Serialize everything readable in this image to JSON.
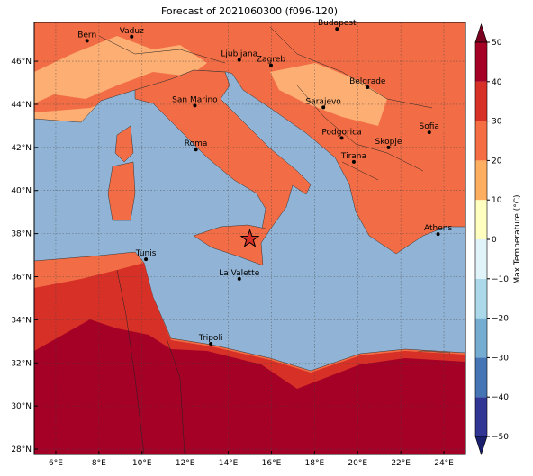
{
  "title": "Forecast of 2021060300 (f096-120)",
  "map": {
    "xlim": [
      5,
      25
    ],
    "ylim": [
      27.75,
      47.8
    ],
    "xticks": [
      {
        "value": 6,
        "label": "6°E"
      },
      {
        "value": 8,
        "label": "8°E"
      },
      {
        "value": 10,
        "label": "10°E"
      },
      {
        "value": 12,
        "label": "12°E"
      },
      {
        "value": 14,
        "label": "14°E"
      },
      {
        "value": 16,
        "label": "16°E"
      },
      {
        "value": 18,
        "label": "18°E"
      },
      {
        "value": 20,
        "label": "20°E"
      },
      {
        "value": 22,
        "label": "22°E"
      },
      {
        "value": 24,
        "label": "24°E"
      }
    ],
    "yticks": [
      {
        "value": 28,
        "label": "28°N"
      },
      {
        "value": 30,
        "label": "30°N"
      },
      {
        "value": 32,
        "label": "32°N"
      },
      {
        "value": 34,
        "label": "34°N"
      },
      {
        "value": 36,
        "label": "36°N"
      },
      {
        "value": 38,
        "label": "38°N"
      },
      {
        "value": 40,
        "label": "40°N"
      },
      {
        "value": 42,
        "label": "42°N"
      },
      {
        "value": 44,
        "label": "44°N"
      },
      {
        "value": 46,
        "label": "46°N"
      }
    ],
    "grid": true,
    "cities": [
      {
        "name": "Bern",
        "lon": 7.45,
        "lat": 46.95
      },
      {
        "name": "Vaduz",
        "lon": 9.52,
        "lat": 47.14
      },
      {
        "name": "Budapest",
        "lon": 19.04,
        "lat": 47.5
      },
      {
        "name": "Ljubljana",
        "lon": 14.51,
        "lat": 46.06
      },
      {
        "name": "Zagreb",
        "lon": 15.98,
        "lat": 45.81
      },
      {
        "name": "Belgrade",
        "lon": 20.46,
        "lat": 44.79
      },
      {
        "name": "San Marino",
        "lon": 12.45,
        "lat": 43.94
      },
      {
        "name": "Sarajevo",
        "lon": 18.41,
        "lat": 43.86
      },
      {
        "name": "Sofia",
        "lon": 23.32,
        "lat": 42.7
      },
      {
        "name": "Roma",
        "lon": 12.5,
        "lat": 41.9
      },
      {
        "name": "Podgorica",
        "lon": 19.26,
        "lat": 42.44
      },
      {
        "name": "Skopje",
        "lon": 21.43,
        "lat": 42.0
      },
      {
        "name": "Tirana",
        "lon": 19.82,
        "lat": 41.33
      },
      {
        "name": "Athens",
        "lon": 23.73,
        "lat": 37.98
      },
      {
        "name": "Tunis",
        "lon": 10.18,
        "lat": 36.81
      },
      {
        "name": "La Valette",
        "lon": 14.51,
        "lat": 35.9
      },
      {
        "name": "Tripoli",
        "lon": 13.19,
        "lat": 32.89
      }
    ],
    "star": {
      "lon": 15.0,
      "lat": 37.75
    }
  },
  "colorbar": {
    "label": "Max Temperature (°C)",
    "clim": [
      -50,
      50
    ],
    "levels": [
      -50,
      -40,
      -30,
      -20,
      -10,
      0,
      10,
      20,
      30,
      40,
      50
    ],
    "colors": [
      "#313695",
      "#4575b4",
      "#74add1",
      "#abd9e9",
      "#e0f3f8",
      "#ffffbf",
      "#fdae61",
      "#f46d43",
      "#d73027",
      "#a50026"
    ],
    "under_color": "#1a1f6e",
    "over_color": "#7a0022",
    "ticks": [
      {
        "value": -50,
        "label": "−50"
      },
      {
        "value": -40,
        "label": "−40"
      },
      {
        "value": -30,
        "label": "−30"
      },
      {
        "value": -20,
        "label": "−20"
      },
      {
        "value": -10,
        "label": "−10"
      },
      0,
      10,
      20,
      30,
      40,
      50
    ]
  }
}
